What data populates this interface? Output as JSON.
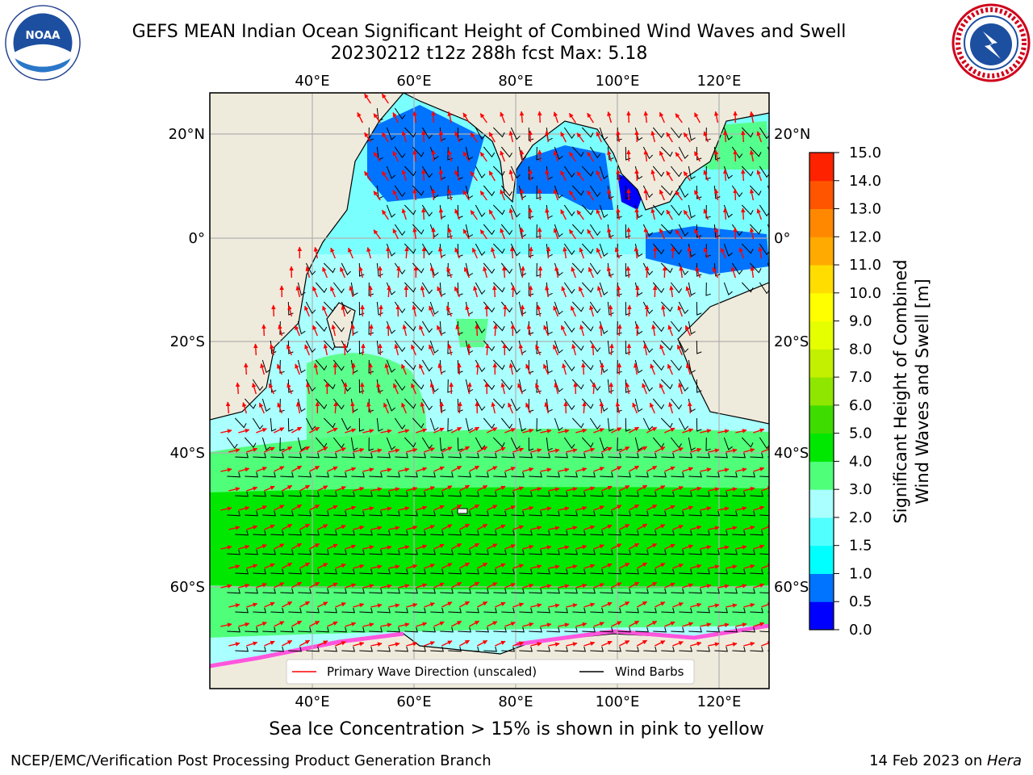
{
  "header": {
    "title_line1": "GEFS MEAN Indian Ocean Significant Height of Combined Wind Waves and Swell",
    "title_line2": "20230212 t12z 288h fcst   Max: 5.18"
  },
  "map": {
    "lon_labels": [
      "40°E",
      "60°E",
      "80°E",
      "100°E",
      "120°E"
    ],
    "lat_labels": [
      "20°N",
      "0°",
      "20°S",
      "40°S",
      "60°S"
    ],
    "legend": {
      "wave_label": "Primary Wave Direction (unscaled)",
      "wind_label": "Wind Barbs"
    },
    "colors": {
      "land": "#efebdc",
      "wave_arrow": "#ff0000",
      "wind_barb": "#000000",
      "grid": "#b0b0b0"
    }
  },
  "colorbar": {
    "label_line1": "Significant Height of Combined",
    "label_line2": "Wind Waves and Swell [m]",
    "ticks": [
      "0.0",
      "0.5",
      "1.0",
      "1.5",
      "2.0",
      "3.0",
      "4.0",
      "5.0",
      "6.0",
      "7.0",
      "8.0",
      "9.0",
      "10.0",
      "11.0",
      "12.0",
      "13.0",
      "14.0",
      "15.0"
    ],
    "colors": [
      "#0000ff",
      "#0073ff",
      "#00ffff",
      "#52ffff",
      "#aaffff",
      "#4fff7a",
      "#00e800",
      "#3fdc00",
      "#8fe600",
      "#c2f000",
      "#e5ff00",
      "#ffff00",
      "#ffdd00",
      "#ffaa00",
      "#ff8800",
      "#ff5500",
      "#ff2200"
    ]
  },
  "footer": {
    "ice_note": "Sea Ice Concentration > 15% is shown in pink to yellow",
    "left": "NCEP/EMC/Verification Post Processing Product Generation Branch",
    "right_date": "14 Feb 2023 on ",
    "right_system": "Hera"
  },
  "logos": {
    "noaa_text": "NOAA",
    "nws_text": "NATIONAL WEATHER SERVICE"
  }
}
